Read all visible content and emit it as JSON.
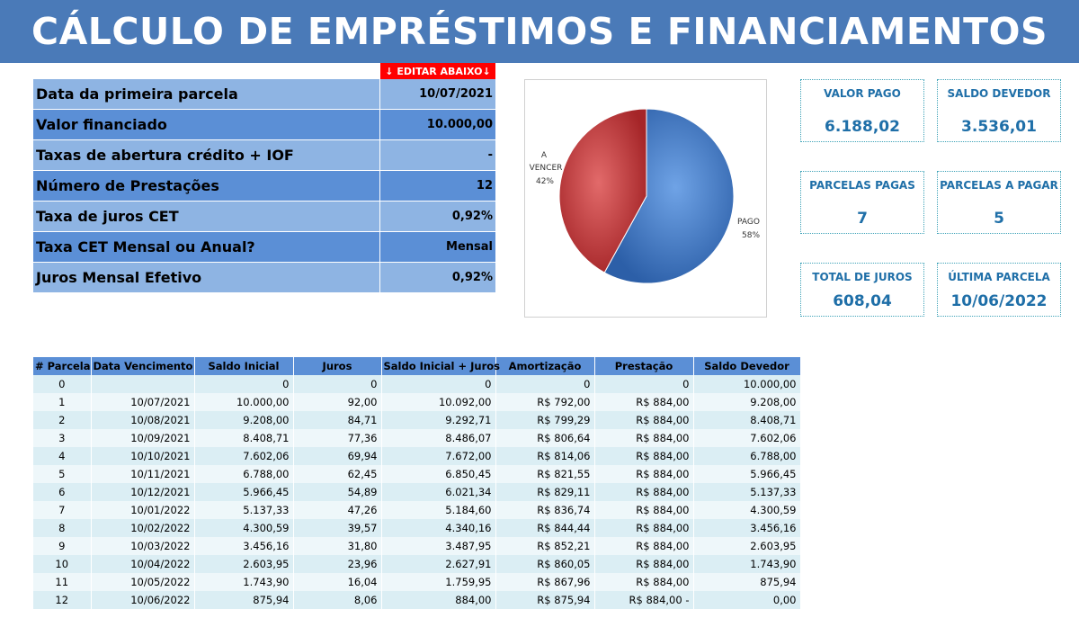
{
  "header": {
    "title": "CÁLCULO DE EMPRÉSTIMOS E FINANCIAMENTOS"
  },
  "edit_tag": "↓ EDITAR ABAIXO↓",
  "params": [
    {
      "label": "Data da primeira parcela",
      "value": "10/07/2021"
    },
    {
      "label": "Valor financiado",
      "value": "10.000,00"
    },
    {
      "label": "Taxas de abertura crédito + IOF",
      "value": "-"
    },
    {
      "label": "Número de Prestações",
      "value": "12"
    },
    {
      "label": "Taxa de juros CET",
      "value": "0,92%"
    },
    {
      "label": "Taxa CET Mensal ou Anual?",
      "value": "Mensal"
    },
    {
      "label": "Juros Mensal Efetivo",
      "value": "0,92%"
    }
  ],
  "chart_data": {
    "type": "pie",
    "title": "",
    "slices": [
      {
        "label": "PAGO",
        "percent_label": "58%",
        "value": 58,
        "color": "#3d78c9"
      },
      {
        "label": "A VENCER",
        "percent_label": "42%",
        "value": 42,
        "color": "#c8383a"
      }
    ]
  },
  "kpis": {
    "valor_pago": {
      "title": "VALOR PAGO",
      "value": "6.188,02"
    },
    "saldo_devedor": {
      "title": "SALDO DEVEDOR",
      "value": "3.536,01"
    },
    "parcelas_pagas": {
      "title": "PARCELAS PAGAS",
      "value": "7"
    },
    "parcelas_a_pagar": {
      "title": "PARCELAS A PAGAR",
      "value": "5"
    },
    "total_juros": {
      "title": "TOTAL DE JUROS",
      "value": "608,04"
    },
    "ultima_parcela": {
      "title": "ÚLTIMA PARCELA",
      "value": "10/06/2022"
    }
  },
  "schedule": {
    "columns": [
      "# Parcela",
      "Data Vencimento",
      "Saldo Inicial",
      "Juros",
      "Saldo Inicial + Juros",
      "Amortização",
      "Prestação",
      "Saldo Devedor"
    ],
    "rows": [
      [
        "0",
        "",
        "0",
        "0",
        "0",
        "0",
        "0",
        "10.000,00"
      ],
      [
        "1",
        "10/07/2021",
        "10.000,00",
        "92,00",
        "10.092,00",
        "R$ 792,00",
        "R$ 884,00",
        "9.208,00"
      ],
      [
        "2",
        "10/08/2021",
        "9.208,00",
        "84,71",
        "9.292,71",
        "R$ 799,29",
        "R$ 884,00",
        "8.408,71"
      ],
      [
        "3",
        "10/09/2021",
        "8.408,71",
        "77,36",
        "8.486,07",
        "R$ 806,64",
        "R$ 884,00",
        "7.602,06"
      ],
      [
        "4",
        "10/10/2021",
        "7.602,06",
        "69,94",
        "7.672,00",
        "R$ 814,06",
        "R$ 884,00",
        "6.788,00"
      ],
      [
        "5",
        "10/11/2021",
        "6.788,00",
        "62,45",
        "6.850,45",
        "R$ 821,55",
        "R$ 884,00",
        "5.966,45"
      ],
      [
        "6",
        "10/12/2021",
        "5.966,45",
        "54,89",
        "6.021,34",
        "R$ 829,11",
        "R$ 884,00",
        "5.137,33"
      ],
      [
        "7",
        "10/01/2022",
        "5.137,33",
        "47,26",
        "5.184,60",
        "R$ 836,74",
        "R$ 884,00",
        "4.300,59"
      ],
      [
        "8",
        "10/02/2022",
        "4.300,59",
        "39,57",
        "4.340,16",
        "R$ 844,44",
        "R$ 884,00",
        "3.456,16"
      ],
      [
        "9",
        "10/03/2022",
        "3.456,16",
        "31,80",
        "3.487,95",
        "R$ 852,21",
        "R$ 884,00",
        "2.603,95"
      ],
      [
        "10",
        "10/04/2022",
        "2.603,95",
        "23,96",
        "2.627,91",
        "R$ 860,05",
        "R$ 884,00",
        "1.743,90"
      ],
      [
        "11",
        "10/05/2022",
        "1.743,90",
        "16,04",
        "1.759,95",
        "R$ 867,96",
        "R$ 884,00",
        "875,94"
      ],
      [
        "12",
        "10/06/2022",
        "875,94",
        "8,06",
        "884,00",
        "R$ 875,94",
        "R$ 884,00 -",
        "0,00"
      ]
    ]
  }
}
